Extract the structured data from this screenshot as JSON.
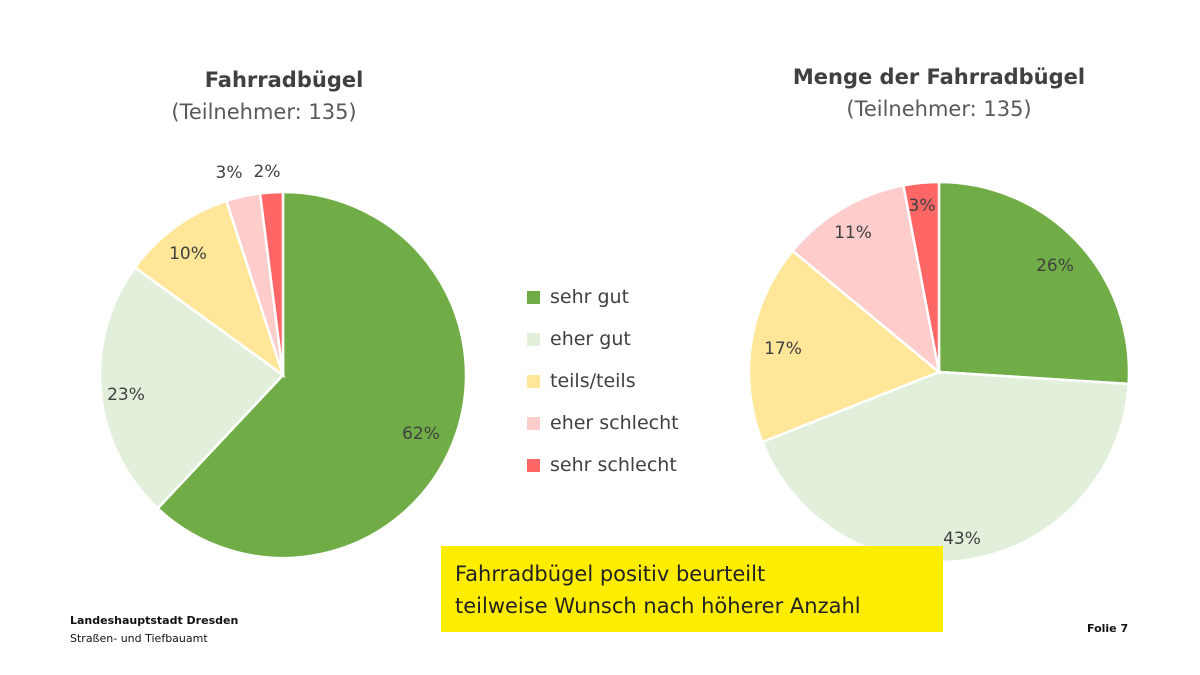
{
  "colors": {
    "sehr_gut": "#70ad47",
    "eher_gut": "#e2efda",
    "teils_teils": "#ffe699",
    "eher_schlecht": "#ffcccc",
    "sehr_schlecht": "#ff6666"
  },
  "legend": [
    {
      "label": "sehr gut",
      "color": "#70ad47"
    },
    {
      "label": "eher gut",
      "color": "#e2efda"
    },
    {
      "label": "teils/teils",
      "color": "#ffe699"
    },
    {
      "label": "eher schlecht",
      "color": "#ffcccc"
    },
    {
      "label": "sehr schlecht",
      "color": "#ff6666"
    }
  ],
  "chart_data": [
    {
      "type": "pie",
      "title": "Fahrradbügel",
      "subtitle": "(Teilnehmer: 135)",
      "categories": [
        "sehr gut",
        "eher gut",
        "teils/teils",
        "eher schlecht",
        "sehr schlecht"
      ],
      "values": [
        62,
        23,
        10,
        3,
        2
      ],
      "labels": [
        "62%",
        "23%",
        "10%",
        "3%",
        "2%"
      ],
      "legend": "center-right"
    },
    {
      "type": "pie",
      "title": "Menge der Fahrradbügel",
      "subtitle": "(Teilnehmer: 135)",
      "categories": [
        "sehr gut",
        "eher gut",
        "teils/teils",
        "eher schlecht",
        "sehr schlecht"
      ],
      "values": [
        26,
        43,
        17,
        11,
        3
      ],
      "labels": [
        "26%",
        "43%",
        "17%",
        "11%",
        "3%"
      ],
      "legend": "center-left"
    }
  ],
  "callout": {
    "line1": "Fahrradbügel positiv beurteilt",
    "line2": "teilweise Wunsch nach höherer Anzahl"
  },
  "footer": {
    "org": "Landeshauptstadt Dresden",
    "dept": "Straßen- und Tiefbauamt",
    "page": "Folie 7"
  }
}
